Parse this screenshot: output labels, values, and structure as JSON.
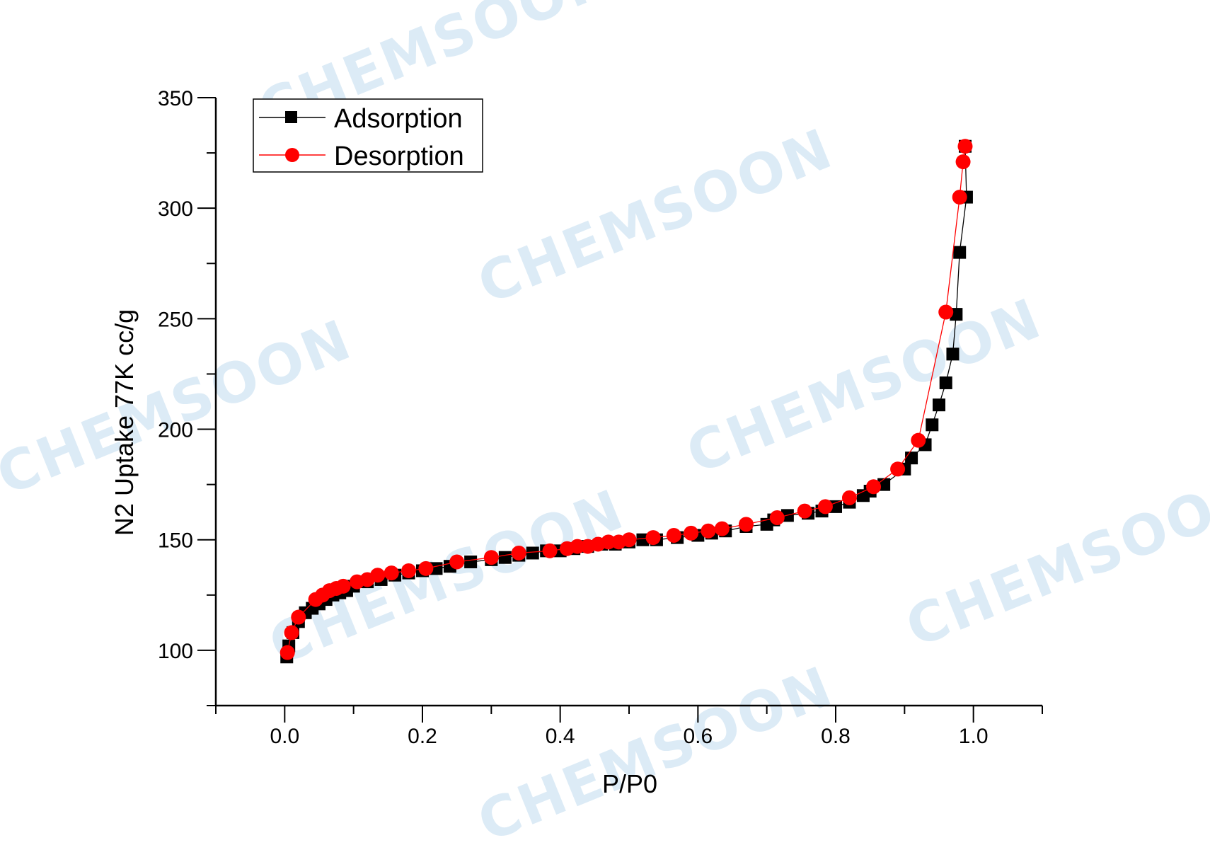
{
  "chart_data": {
    "type": "scatter",
    "title": "",
    "xlabel": "P/P0",
    "ylabel": "N2 Uptake 77K cc/g",
    "xlim": [
      -0.1,
      1.1
    ],
    "ylim": [
      75,
      350
    ],
    "x_ticks": [
      "0.0",
      "0.2",
      "0.4",
      "0.6",
      "0.8",
      "1.0"
    ],
    "x_tick_values": [
      0.0,
      0.2,
      0.4,
      0.6,
      0.8,
      1.0
    ],
    "y_ticks": [
      "100",
      "150",
      "200",
      "250",
      "300",
      "350"
    ],
    "y_tick_values": [
      100,
      150,
      200,
      250,
      300,
      350
    ],
    "legend_position": "top-left",
    "grid": false,
    "watermark": "CHEMSOON",
    "series": [
      {
        "name": "Adsorption",
        "color": "#000000",
        "marker": "square",
        "x": [
          0.003,
          0.006,
          0.012,
          0.02,
          0.03,
          0.04,
          0.05,
          0.06,
          0.07,
          0.08,
          0.09,
          0.1,
          0.12,
          0.14,
          0.16,
          0.18,
          0.2,
          0.22,
          0.24,
          0.27,
          0.3,
          0.32,
          0.34,
          0.36,
          0.38,
          0.4,
          0.42,
          0.44,
          0.46,
          0.48,
          0.5,
          0.52,
          0.54,
          0.57,
          0.6,
          0.62,
          0.64,
          0.67,
          0.7,
          0.71,
          0.73,
          0.76,
          0.78,
          0.8,
          0.82,
          0.84,
          0.85,
          0.87,
          0.9,
          0.91,
          0.93,
          0.94,
          0.95,
          0.96,
          0.97,
          0.975,
          0.98,
          0.99,
          0.988
        ],
        "y": [
          97,
          102,
          108,
          113,
          117,
          119,
          121,
          123,
          125,
          126,
          127,
          129,
          131,
          132,
          134,
          135,
          136,
          137,
          138,
          140,
          141,
          142,
          143,
          144,
          145,
          145,
          146,
          147,
          148,
          148,
          149,
          150,
          150,
          151,
          152,
          153,
          154,
          156,
          157,
          159,
          161,
          162,
          163,
          165,
          167,
          170,
          172,
          175,
          182,
          187,
          193,
          202,
          211,
          221,
          234,
          252,
          280,
          305,
          328
        ]
      },
      {
        "name": "Desorption",
        "color": "#ff0000",
        "marker": "circle",
        "x": [
          0.988,
          0.985,
          0.98,
          0.96,
          0.92,
          0.89,
          0.855,
          0.82,
          0.785,
          0.755,
          0.715,
          0.67,
          0.635,
          0.615,
          0.59,
          0.565,
          0.535,
          0.5,
          0.485,
          0.47,
          0.455,
          0.44,
          0.425,
          0.41,
          0.385,
          0.34,
          0.3,
          0.25,
          0.205,
          0.18,
          0.155,
          0.135,
          0.12,
          0.105,
          0.085,
          0.075,
          0.065,
          0.055,
          0.045,
          0.02,
          0.01,
          0.004
        ],
        "y": [
          328,
          321,
          305,
          253,
          195,
          182,
          174,
          169,
          165,
          163,
          160,
          157,
          155,
          154,
          153,
          152,
          151,
          150,
          149,
          149,
          148,
          147,
          147,
          146,
          145,
          144,
          142,
          140,
          137,
          136,
          135,
          134,
          132,
          131,
          129,
          128,
          127,
          125,
          123,
          115,
          108,
          99
        ]
      }
    ]
  }
}
